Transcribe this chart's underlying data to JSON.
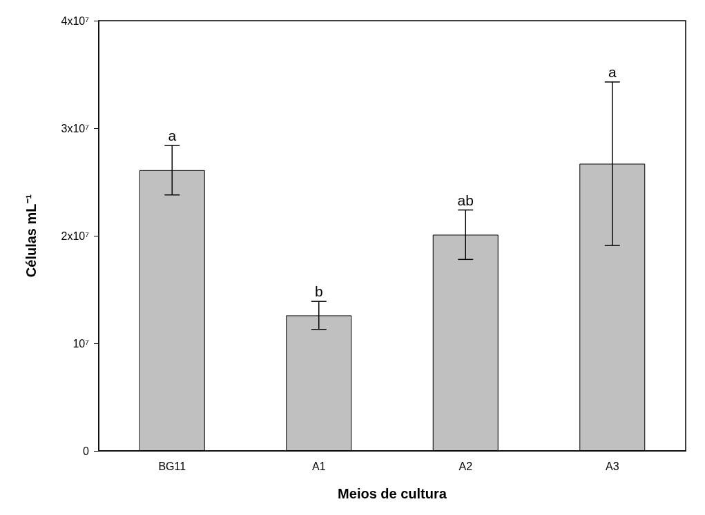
{
  "chart_data": {
    "type": "bar",
    "xlabel": "Meios de cultura",
    "ylabel": "Células mL⁻¹",
    "categories": [
      "BG11",
      "A1",
      "A2",
      "A3"
    ],
    "values": [
      26100000,
      12600000,
      20100000,
      26700000
    ],
    "errors": [
      2300000,
      1300000,
      2300000,
      7600000
    ],
    "color": "#c0c0c0",
    "ylim": [
      0,
      40000000
    ],
    "yticks": [
      0,
      {
        "value": 10000000,
        "label": "10⁷"
      },
      {
        "value": 20000000,
        "label": "2x10⁷"
      },
      {
        "value": 30000000,
        "label": "3x10⁷"
      },
      {
        "value": 40000000,
        "label": "4x10⁷"
      }
    ],
    "annotations": [
      {
        "text": "a",
        "x": "BG11",
        "y": 28400000
      },
      {
        "text": "b",
        "x": "A1",
        "y": 13900000
      },
      {
        "text": "ab",
        "x": "A2",
        "y": 22400000
      },
      {
        "text": "a",
        "x": "A3",
        "y": 34300000
      }
    ]
  }
}
